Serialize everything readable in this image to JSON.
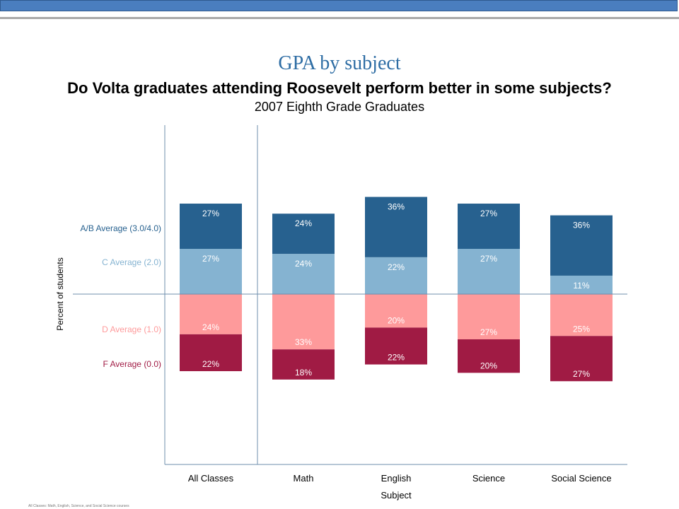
{
  "slide_title": "GPA by subject",
  "chart_data": {
    "type": "bar",
    "stacked": "diverging",
    "title": "Do  Volta graduates attending Roosevelt perform better in some subjects?",
    "subtitle": "2007 Eighth Grade Graduates",
    "xlabel": "Subject",
    "ylabel": "Percent of students",
    "categories": [
      "All Classes",
      "Math",
      "English",
      "Science",
      "Social Science"
    ],
    "series": [
      {
        "name": "A/B Average (3.0/4.0)",
        "side": "above",
        "color": "#27618f",
        "values": [
          27,
          24,
          36,
          27,
          36
        ]
      },
      {
        "name": "C Average (2.0)",
        "side": "above",
        "color": "#85b3d1",
        "values": [
          27,
          24,
          22,
          27,
          11
        ]
      },
      {
        "name": "D Average (1.0)",
        "side": "below",
        "color": "#fe9a9b",
        "values": [
          24,
          33,
          20,
          27,
          25
        ]
      },
      {
        "name": "F Average (0.0)",
        "side": "below",
        "color": "#a01b44",
        "values": [
          22,
          18,
          22,
          20,
          27
        ]
      }
    ],
    "legend_position": "left",
    "grid": false
  },
  "footnote": "All Classes: Math, English, Science, and Social Science courses"
}
